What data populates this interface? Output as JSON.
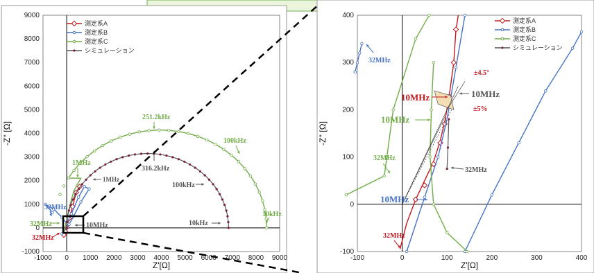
{
  "colors": {
    "A": "#c0181e",
    "B": "#4472c4",
    "C": "#70ad47",
    "S": "#555555",
    "callout_fill": "#eaf5dc",
    "callout_border": "#70ad47"
  },
  "chart_data": [
    {
      "type": "line",
      "xlabel": "Z'[Ω]",
      "ylabel": "-Z'' [Ω]",
      "xlim": [
        -1000,
        9000
      ],
      "ylim": [
        -1000,
        9000
      ],
      "xticks": [
        "-1000",
        "0",
        "1000",
        "2000",
        "3000",
        "4000",
        "5000",
        "6000",
        "7000",
        "8000",
        "9000"
      ],
      "yticks": [
        "-1000",
        "0",
        "1000",
        "2000",
        "3000",
        "4000",
        "5000",
        "6000",
        "7000",
        "8000",
        "9000"
      ],
      "legend": {
        "position": "top-left",
        "entries": [
          "測定系A",
          "測定系B",
          "測定系C",
          "シミュレーション"
        ]
      },
      "series": [
        {
          "name": "測定系A",
          "key": "A",
          "points": [
            [
              -120,
              -300
            ],
            [
              -60,
              -150
            ],
            [
              0,
              20
            ],
            [
              100,
              400
            ],
            [
              250,
              900
            ],
            [
              400,
              1500
            ],
            [
              550,
              1750
            ]
          ]
        },
        {
          "name": "測定系B",
          "key": "B",
          "points": [
            [
              -600,
              650
            ],
            [
              -900,
              1000
            ],
            [
              -550,
              800
            ],
            [
              -200,
              450
            ],
            [
              0,
              180
            ],
            [
              200,
              600
            ],
            [
              500,
              1300
            ],
            [
              750,
              1750
            ],
            [
              950,
              1650
            ],
            [
              600,
              1100
            ],
            [
              300,
              500
            ],
            [
              100,
              150
            ],
            [
              0,
              0
            ],
            [
              -200,
              -250
            ]
          ]
        },
        {
          "name": "測定系C",
          "key": "C",
          "circle": {
            "cx": 3950,
            "cy": 0,
            "r": 4500,
            "from": 160,
            "to": 0,
            "markers": 30
          },
          "extra": [
            [
              -100,
              -150
            ],
            [
              -50,
              100
            ],
            [
              0,
              350
            ],
            [
              100,
              800
            ],
            [
              200,
              1200
            ],
            [
              300,
              1550
            ],
            [
              450,
              1850
            ],
            [
              600,
              2100
            ]
          ]
        },
        {
          "name": "シミュレーション",
          "key": "S",
          "circle": {
            "cx": 3420,
            "cy": 0,
            "r": 3420,
            "from": 180,
            "to": 0,
            "markers": 40
          }
        }
      ],
      "annotations": [
        {
          "text": "251.2kHz",
          "color": "C",
          "size": 10
        },
        {
          "text": "100kHz",
          "color": "C",
          "size": 10
        },
        {
          "text": "10kHz",
          "color": "C",
          "size": 10
        },
        {
          "text": "1MHz",
          "color": "C",
          "size": 10
        },
        {
          "text": "316.2kHz",
          "color": "S",
          "size": 10
        },
        {
          "text": "100kHz",
          "color": "S",
          "size": 10
        },
        {
          "text": "10kHz",
          "color": "S",
          "size": 10
        },
        {
          "text": "1MHz",
          "color": "S",
          "size": 9
        },
        {
          "text": "10MHz",
          "color": "S",
          "size": 10
        },
        {
          "text": "32MHz",
          "color": "B",
          "size": 10
        },
        {
          "text": "32MHz",
          "color": "C",
          "size": 10
        },
        {
          "text": "32MHz",
          "color": "A",
          "size": 10
        }
      ]
    },
    {
      "type": "line",
      "xlabel": "Z'[Ω]",
      "ylabel": "-Z'' [Ω]",
      "xlim": [
        -100,
        400
      ],
      "ylim": [
        -100,
        400
      ],
      "xticks": [
        "-100",
        "0",
        "100",
        "200",
        "300",
        "400"
      ],
      "yticks": [
        "-100",
        "0",
        "100",
        "200",
        "300",
        "400"
      ],
      "legend": {
        "position": "top-right",
        "entries": [
          "測定系A",
          "測定系B",
          "測定系C",
          "シミュレーション"
        ]
      },
      "series": [
        {
          "name": "測定系A",
          "key": "A",
          "points": [
            [
              -5,
              -95
            ],
            [
              10,
              -40
            ],
            [
              30,
              10
            ],
            [
              50,
              50
            ],
            [
              70,
              90
            ],
            [
              85,
              135
            ],
            [
              95,
              175
            ],
            [
              105,
              230
            ],
            [
              115,
              300
            ],
            [
              120,
              370
            ],
            [
              125,
              400
            ]
          ],
          "markers": [
            [
              30,
              10
            ],
            [
              50,
              40
            ],
            [
              70,
              85
            ],
            [
              85,
              130
            ],
            [
              95,
              170
            ],
            [
              105,
              228
            ],
            [
              115,
              300
            ],
            [
              120,
              370
            ]
          ]
        },
        {
          "name": "測定系B",
          "key": "B",
          "points": [
            [
              10,
              -100
            ],
            [
              50,
              15
            ],
            [
              80,
              100
            ],
            [
              100,
              180
            ],
            [
              120,
              290
            ],
            [
              140,
              400
            ]
          ]
        },
        {
          "name": "測定系B",
          "key": "B2",
          "points": [
            [
              -90,
              340
            ],
            [
              -95,
              320
            ],
            [
              -100,
              300
            ],
            [
              -105,
              280
            ]
          ]
        },
        {
          "name": "測定系B",
          "key": "B3",
          "points": [
            [
              140,
              -100
            ],
            [
              200,
              20
            ],
            [
              260,
              130
            ],
            [
              320,
              240
            ],
            [
              380,
              330
            ],
            [
              400,
              365
            ]
          ]
        },
        {
          "name": "測定系C",
          "key": "C",
          "points": [
            [
              -125,
              20
            ],
            [
              -40,
              60
            ],
            [
              -20,
              200
            ],
            [
              30,
              350
            ],
            [
              60,
              400
            ]
          ]
        },
        {
          "name": "測定系C",
          "key": "C2",
          "points": [
            [
              70,
              300
            ],
            [
              65,
              200
            ],
            [
              62,
              100
            ],
            [
              70,
              0
            ],
            [
              100,
              -60
            ],
            [
              145,
              -100
            ]
          ]
        },
        {
          "name": "シミュレーション",
          "key": "S",
          "points": [
            [
              100,
              75
            ],
            [
              102,
              120
            ],
            [
              104,
              180
            ]
          ]
        }
      ],
      "annotations": [
        {
          "text": "32MHz",
          "color": "B",
          "size": 10
        },
        {
          "text": "10MHz",
          "color": "A",
          "size": 13
        },
        {
          "text": "10MHz",
          "color": "S",
          "size": 13
        },
        {
          "text": "±4.5°",
          "color": "A",
          "size": 10
        },
        {
          "text": "±5%",
          "color": "A",
          "size": 10
        },
        {
          "text": "10MHz",
          "color": "C",
          "size": 13
        },
        {
          "text": "32MHz",
          "color": "C",
          "size": 10
        },
        {
          "text": "32MHz",
          "color": "S",
          "size": 10
        },
        {
          "text": "10MHz",
          "color": "B",
          "size": 13
        },
        {
          "text": "32MHz",
          "color": "A",
          "size": 10
        }
      ]
    }
  ]
}
